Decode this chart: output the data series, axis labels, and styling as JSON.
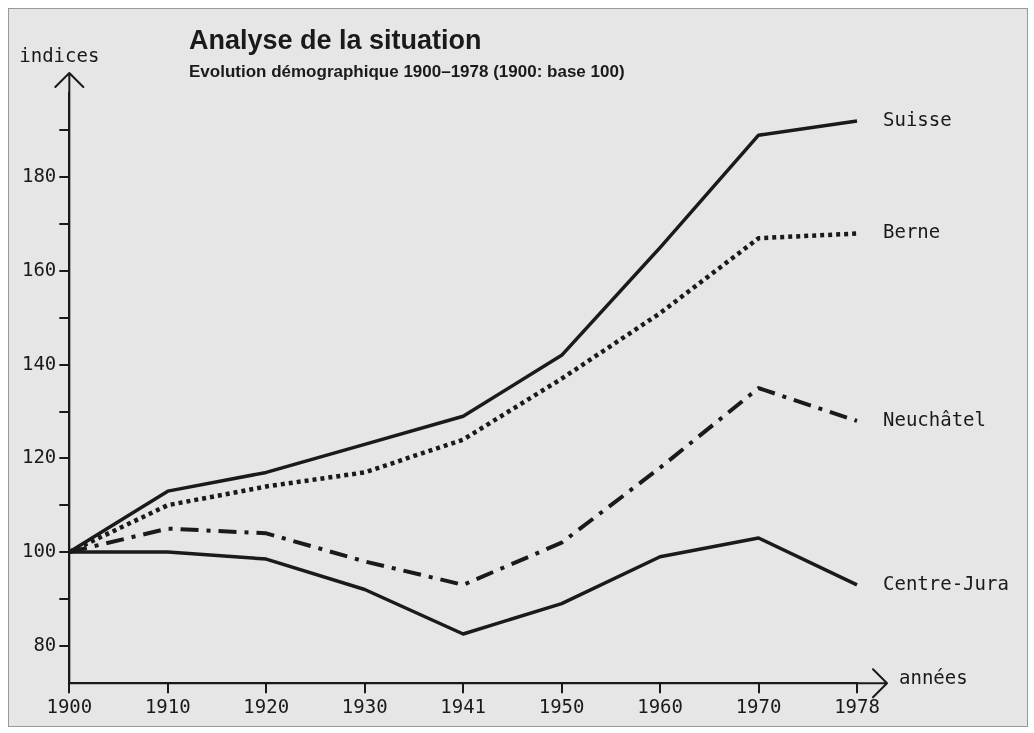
{
  "chart_data": {
    "type": "line",
    "title": "Analyse de la situation",
    "subtitle": "Evolution démographique 1900–1978 (1900: base 100)",
    "xlabel": "années",
    "ylabel": "indices",
    "categories": [
      "1900",
      "1910",
      "1920",
      "1930",
      "1941",
      "1950",
      "1960",
      "1970",
      "1978"
    ],
    "ylim": [
      72,
      198
    ],
    "yticks": [
      80,
      {
        "value": 90,
        "label": null
      },
      100,
      {
        "value": 110,
        "label": null
      },
      120,
      {
        "value": 130,
        "label": null
      },
      140,
      {
        "value": 150,
        "label": null
      },
      160,
      {
        "value": 170,
        "label": null
      },
      180,
      {
        "value": 190,
        "label": null
      }
    ],
    "grid": false,
    "marker": "none",
    "series": [
      {
        "name": "Suisse",
        "color": "#1a1a1a",
        "line_style": "solid",
        "values": [
          100,
          113,
          117,
          123,
          129,
          142,
          165,
          189,
          192
        ]
      },
      {
        "name": "Berne",
        "color": "#1a1a1a",
        "line_style": "dotted",
        "values": [
          100,
          110,
          114,
          117,
          124,
          137,
          151,
          167,
          168
        ]
      },
      {
        "name": "Neuchâtel",
        "color": "#1a1a1a",
        "line_style": "dashed",
        "values": [
          100,
          105,
          104,
          98,
          93,
          102,
          118,
          135,
          128
        ]
      },
      {
        "name": "Centre-Jura",
        "color": "#1a1a1a",
        "line_style": "solid",
        "values": [
          100,
          100,
          98.5,
          92,
          82.5,
          89,
          99,
          103,
          93
        ]
      }
    ]
  }
}
